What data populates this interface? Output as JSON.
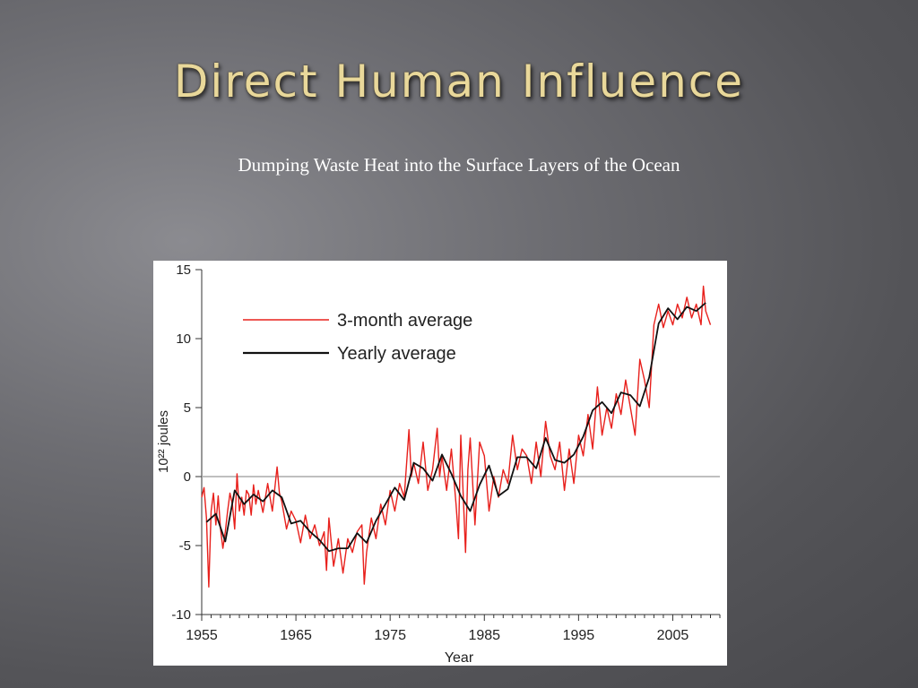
{
  "slide": {
    "title": "Direct Human Influence",
    "subtitle": "Dumping Waste Heat into the Surface Layers of the Ocean"
  },
  "chart_data": {
    "type": "line",
    "xlabel": "Year",
    "ylabel": "10²² joules",
    "xlim": [
      1955,
      2010
    ],
    "ylim": [
      -10,
      15
    ],
    "x_ticks": [
      1955,
      1965,
      1975,
      1985,
      1995,
      2005
    ],
    "y_ticks": [
      -10,
      -5,
      0,
      5,
      10,
      15
    ],
    "zero_line": true,
    "legend_position": "top-left",
    "colors": {
      "three_month": "#e8201c",
      "yearly": "#111111",
      "zero_line": "#aaaaaa"
    },
    "series": [
      {
        "name": "3-month average",
        "x": [
          1955.0,
          1955.25,
          1955.5,
          1955.75,
          1956.0,
          1956.25,
          1956.5,
          1956.75,
          1957.0,
          1957.25,
          1957.5,
          1957.75,
          1958.0,
          1958.25,
          1958.5,
          1958.75,
          1959.0,
          1959.25,
          1959.5,
          1959.75,
          1960.0,
          1960.25,
          1960.5,
          1960.75,
          1961.0,
          1961.5,
          1962.0,
          1962.5,
          1963.0,
          1963.25,
          1963.5,
          1964.0,
          1964.5,
          1965.0,
          1965.5,
          1966.0,
          1966.5,
          1967.0,
          1967.5,
          1968.0,
          1968.25,
          1968.5,
          1969.0,
          1969.5,
          1970.0,
          1970.5,
          1971.0,
          1971.5,
          1972.0,
          1972.25,
          1972.5,
          1973.0,
          1973.5,
          1974.0,
          1974.5,
          1975.0,
          1975.5,
          1976.0,
          1976.5,
          1977.0,
          1977.25,
          1977.5,
          1978.0,
          1978.5,
          1979.0,
          1979.5,
          1980.0,
          1980.25,
          1980.5,
          1981.0,
          1981.5,
          1982.0,
          1982.25,
          1982.5,
          1983.0,
          1983.25,
          1983.5,
          1984.0,
          1984.5,
          1985.0,
          1985.5,
          1986.0,
          1986.5,
          1987.0,
          1987.5,
          1988.0,
          1988.5,
          1989.0,
          1989.5,
          1990.0,
          1990.5,
          1991.0,
          1991.5,
          1992.0,
          1992.5,
          1993.0,
          1993.5,
          1994.0,
          1994.5,
          1995.0,
          1995.5,
          1996.0,
          1996.5,
          1997.0,
          1997.5,
          1998.0,
          1998.5,
          1999.0,
          1999.5,
          2000.0,
          2000.5,
          2001.0,
          2001.5,
          2002.0,
          2002.5,
          2003.0,
          2003.5,
          2004.0,
          2004.5,
          2005.0,
          2005.5,
          2006.0,
          2006.5,
          2007.0,
          2007.5,
          2008.0,
          2008.25,
          2008.5,
          2009.0
        ],
        "y": [
          -1.5,
          -0.8,
          -3.0,
          -8.0,
          -2.5,
          -1.2,
          -3.5,
          -1.4,
          -3.8,
          -5.2,
          -4.0,
          -2.5,
          -1.2,
          -2.0,
          -3.8,
          0.2,
          -2.5,
          -1.5,
          -2.8,
          -1.0,
          -1.3,
          -2.8,
          -0.6,
          -2.0,
          -1.0,
          -2.6,
          -0.5,
          -2.5,
          0.7,
          -1.2,
          -1.8,
          -3.8,
          -2.5,
          -3.2,
          -4.8,
          -2.8,
          -4.5,
          -3.5,
          -5.0,
          -4.0,
          -6.8,
          -3.0,
          -6.5,
          -4.5,
          -7.0,
          -4.5,
          -5.5,
          -4.0,
          -3.5,
          -7.8,
          -5.5,
          -3.0,
          -4.5,
          -2.0,
          -3.5,
          -1.0,
          -2.5,
          -0.5,
          -1.5,
          3.4,
          0.0,
          1.0,
          -0.5,
          2.5,
          -1.0,
          0.5,
          3.5,
          0.0,
          1.5,
          -1.0,
          2.0,
          -2.0,
          -4.5,
          3.0,
          -5.5,
          0.5,
          2.8,
          -3.5,
          2.5,
          1.5,
          -2.5,
          0.0,
          -1.5,
          0.5,
          -0.5,
          3.0,
          0.5,
          2.0,
          1.5,
          -0.5,
          2.5,
          0.0,
          4.0,
          1.5,
          0.5,
          2.5,
          -1.0,
          2.0,
          -0.5,
          3.0,
          1.5,
          4.5,
          2.0,
          6.5,
          3.0,
          5.0,
          3.5,
          6.0,
          4.5,
          7.0,
          5.0,
          3.0,
          8.5,
          7.0,
          5.0,
          11.0,
          12.5,
          10.8,
          12.0,
          11.0,
          12.5,
          11.5,
          13.0,
          11.5,
          12.5,
          11.0,
          13.8,
          12.0,
          11.0
        ],
        "color": "#e8201c"
      },
      {
        "name": "Yearly average",
        "x": [
          1955.5,
          1956.5,
          1957.5,
          1958.5,
          1959.5,
          1960.5,
          1961.5,
          1962.5,
          1963.5,
          1964.5,
          1965.5,
          1966.5,
          1967.5,
          1968.5,
          1969.5,
          1970.5,
          1971.5,
          1972.5,
          1973.5,
          1974.5,
          1975.5,
          1976.5,
          1977.5,
          1978.5,
          1979.5,
          1980.5,
          1981.5,
          1982.5,
          1983.5,
          1984.5,
          1985.5,
          1986.5,
          1987.5,
          1988.5,
          1989.5,
          1990.5,
          1991.5,
          1992.5,
          1993.5,
          1994.5,
          1995.5,
          1996.5,
          1997.5,
          1998.5,
          1999.5,
          2000.5,
          2001.5,
          2002.5,
          2003.5,
          2004.5,
          2005.5,
          2006.5,
          2007.5,
          2008.5
        ],
        "y": [
          -3.3,
          -2.7,
          -4.7,
          -1.0,
          -2.0,
          -1.3,
          -1.8,
          -1.0,
          -1.5,
          -3.4,
          -3.2,
          -4.0,
          -4.6,
          -5.4,
          -5.2,
          -5.2,
          -4.1,
          -4.8,
          -3.2,
          -2.0,
          -0.8,
          -1.7,
          1.0,
          0.6,
          -0.3,
          1.6,
          0.2,
          -1.4,
          -2.5,
          -0.6,
          0.8,
          -1.4,
          -0.9,
          1.4,
          1.4,
          0.6,
          2.8,
          1.2,
          1.0,
          1.6,
          2.9,
          4.8,
          5.4,
          4.6,
          6.1,
          5.9,
          5.1,
          7.2,
          11.1,
          12.2,
          11.4,
          12.3,
          12.0,
          12.6
        ],
        "color": "#111111"
      }
    ]
  }
}
